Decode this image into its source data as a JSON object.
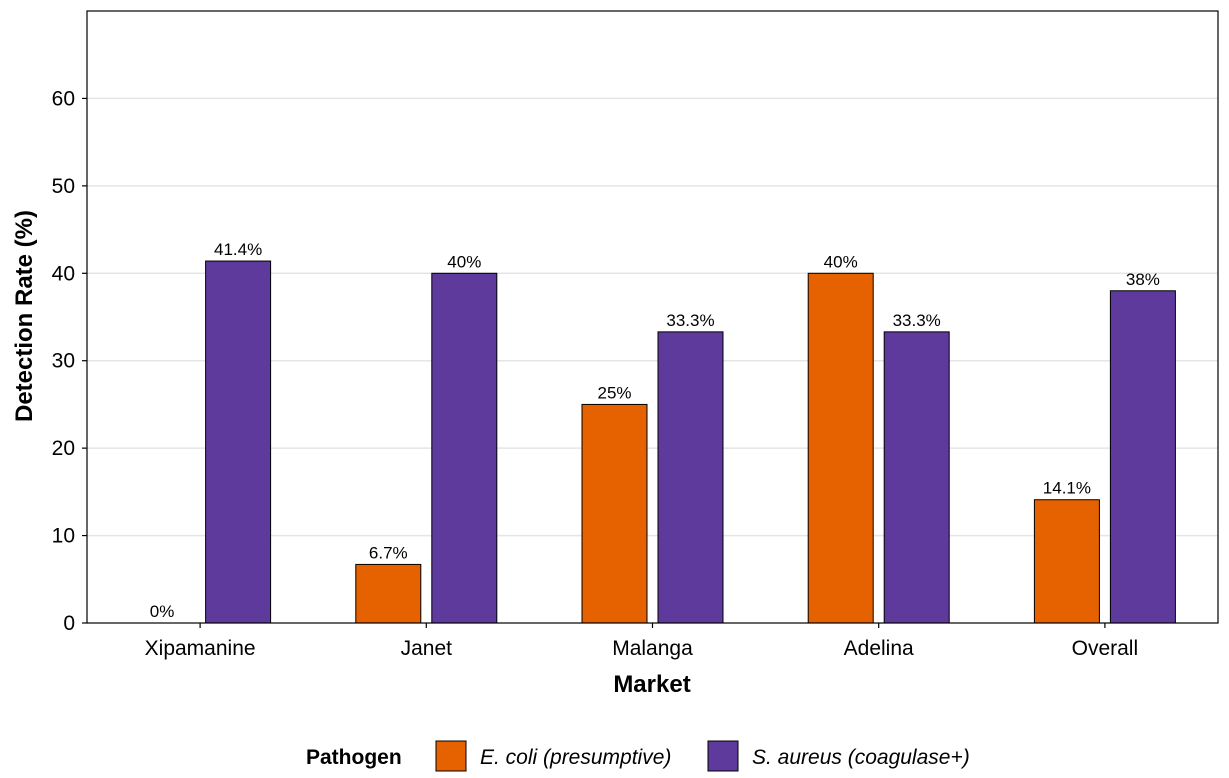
{
  "chart_data": {
    "type": "bar",
    "title": "",
    "xlabel": "Market",
    "ylabel": "Detection Rate (%)",
    "ylim": [
      0,
      70
    ],
    "yticks": [
      0,
      10,
      20,
      30,
      40,
      50,
      60
    ],
    "grid": "horizontal",
    "legend_position": "bottom",
    "legend_title": "Pathogen",
    "categories": [
      "Xipamanine",
      "Janet",
      "Malanga",
      "Adelina",
      "Overall"
    ],
    "series": [
      {
        "name": "E. coli (presumptive)",
        "color": "#E66100",
        "values": [
          0,
          6.7,
          25,
          40,
          14.1
        ],
        "labels": [
          "0%",
          "6.7%",
          "25%",
          "40%",
          "14.1%"
        ]
      },
      {
        "name": "S. aureus (coagulase+)",
        "color": "#5D3A9B",
        "values": [
          41.4,
          40,
          33.3,
          33.3,
          38
        ],
        "labels": [
          "41.4%",
          "40%",
          "33.3%",
          "33.3%",
          "38%"
        ]
      }
    ]
  }
}
